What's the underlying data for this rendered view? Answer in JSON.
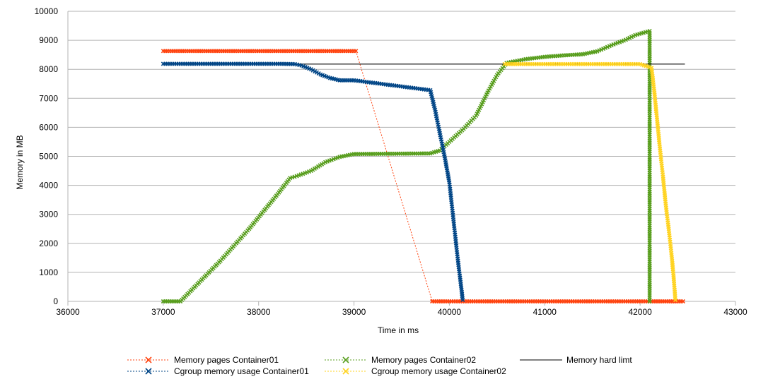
{
  "chart_data": {
    "type": "scatter",
    "title": "",
    "xlabel": "Time in ms",
    "ylabel": "Memory in MB",
    "xlim": [
      36000,
      43000
    ],
    "ylim": [
      0,
      10000
    ],
    "x_ticks": [
      36000,
      37000,
      38000,
      39000,
      40000,
      41000,
      42000,
      43000
    ],
    "y_ticks": [
      0,
      1000,
      2000,
      3000,
      4000,
      5000,
      6000,
      7000,
      8000,
      9000,
      10000
    ],
    "grid": "horizontal",
    "legend_position": "bottom",
    "colors": {
      "grid": "#b3b3b3",
      "axis": "#b3b3b3"
    },
    "series": [
      {
        "name": "Memory pages Container01",
        "color": "#ff420e",
        "marker": "x",
        "line": "dotted",
        "points": [
          [
            37000,
            8630
          ],
          [
            37200,
            8630
          ],
          [
            37400,
            8630
          ],
          [
            37600,
            8630
          ],
          [
            37800,
            8630
          ],
          [
            38000,
            8630
          ],
          [
            38200,
            8630
          ],
          [
            38400,
            8630
          ],
          [
            38600,
            8630
          ],
          [
            38800,
            8630
          ],
          [
            39020,
            8630
          ],
          [
            39820,
            0
          ],
          [
            40000,
            0
          ],
          [
            40300,
            0
          ],
          [
            40600,
            0
          ],
          [
            40900,
            0
          ],
          [
            41200,
            0
          ],
          [
            41500,
            0
          ],
          [
            41800,
            0
          ],
          [
            42100,
            0
          ],
          [
            42450,
            0
          ]
        ]
      },
      {
        "name": "Memory pages Container02",
        "color": "#579d1c",
        "marker": "x",
        "line": "dotted",
        "points": [
          [
            37000,
            0
          ],
          [
            37180,
            0
          ],
          [
            37300,
            400
          ],
          [
            37450,
            900
          ],
          [
            37600,
            1400
          ],
          [
            37750,
            1950
          ],
          [
            37900,
            2500
          ],
          [
            38050,
            3100
          ],
          [
            38200,
            3700
          ],
          [
            38330,
            4250
          ],
          [
            38400,
            4320
          ],
          [
            38550,
            4500
          ],
          [
            38700,
            4800
          ],
          [
            38850,
            4980
          ],
          [
            39000,
            5080
          ],
          [
            39800,
            5100
          ],
          [
            39900,
            5200
          ],
          [
            40000,
            5500
          ],
          [
            40150,
            5950
          ],
          [
            40280,
            6400
          ],
          [
            40400,
            7200
          ],
          [
            40500,
            7800
          ],
          [
            40600,
            8220
          ],
          [
            40800,
            8350
          ],
          [
            41000,
            8430
          ],
          [
            41200,
            8480
          ],
          [
            41400,
            8520
          ],
          [
            41550,
            8620
          ],
          [
            41700,
            8830
          ],
          [
            41850,
            9020
          ],
          [
            41950,
            9180
          ],
          [
            42100,
            9320
          ],
          [
            42100,
            0
          ]
        ]
      },
      {
        "name": "Memory hard limt",
        "color": "#000000",
        "marker": "none",
        "line": "solid",
        "points": [
          [
            37000,
            8180
          ],
          [
            42470,
            8180
          ]
        ]
      },
      {
        "name": "Cgroup memory usage Container01",
        "color": "#004586",
        "marker": "x",
        "line": "dotted",
        "points": [
          [
            37000,
            8190
          ],
          [
            37300,
            8190
          ],
          [
            37600,
            8190
          ],
          [
            37900,
            8190
          ],
          [
            38200,
            8190
          ],
          [
            38380,
            8180
          ],
          [
            38450,
            8130
          ],
          [
            38550,
            8000
          ],
          [
            38650,
            7820
          ],
          [
            38750,
            7700
          ],
          [
            38850,
            7620
          ],
          [
            39000,
            7620
          ],
          [
            39800,
            7280
          ],
          [
            39850,
            6600
          ],
          [
            39900,
            5800
          ],
          [
            39950,
            5000
          ],
          [
            40000,
            4100
          ],
          [
            40030,
            3200
          ],
          [
            40060,
            2300
          ],
          [
            40090,
            1400
          ],
          [
            40120,
            600
          ],
          [
            40140,
            50
          ]
        ]
      },
      {
        "name": "Cgroup memory usage Container02",
        "color": "#ffd320",
        "marker": "x",
        "line": "dotted",
        "points": [
          [
            40580,
            8180
          ],
          [
            40800,
            8180
          ],
          [
            41100,
            8180
          ],
          [
            41400,
            8180
          ],
          [
            41700,
            8180
          ],
          [
            42000,
            8180
          ],
          [
            42120,
            8050
          ],
          [
            42150,
            7200
          ],
          [
            42180,
            6200
          ],
          [
            42210,
            5200
          ],
          [
            42240,
            4300
          ],
          [
            42270,
            3300
          ],
          [
            42300,
            2500
          ],
          [
            42330,
            1600
          ],
          [
            42350,
            900
          ],
          [
            42370,
            50
          ]
        ]
      }
    ]
  }
}
